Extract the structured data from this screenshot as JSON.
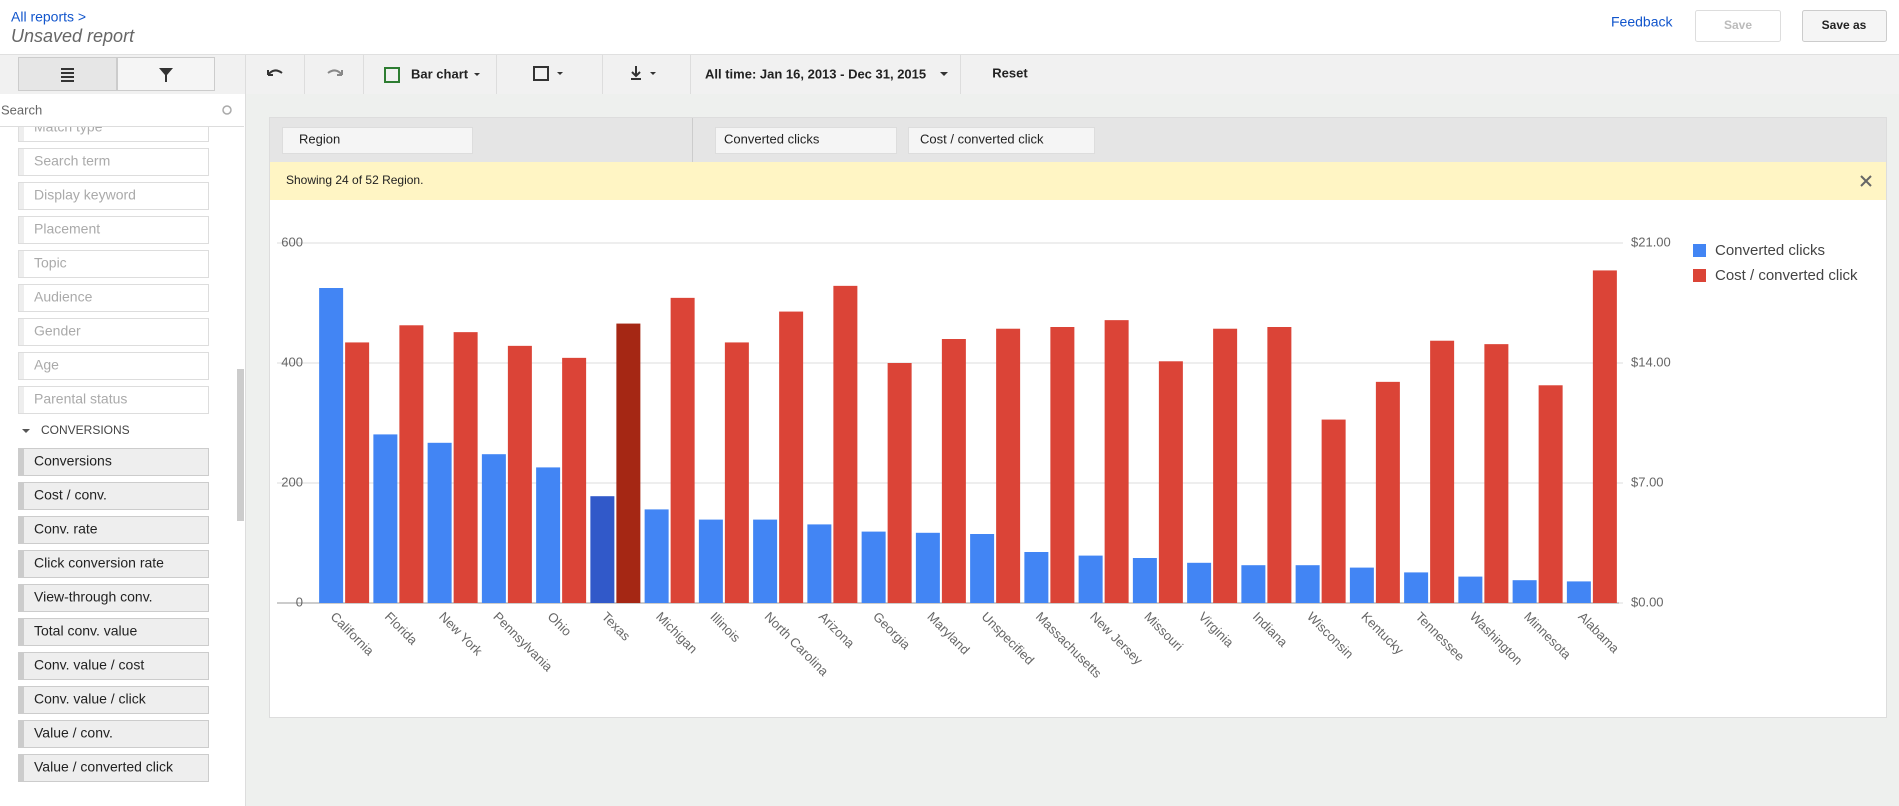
{
  "header": {
    "breadcrumb": "All reports >",
    "title": "Unsaved report",
    "feedback": "Feedback",
    "save": "Save",
    "save_as": "Save as"
  },
  "toolbar": {
    "chart_type": "Bar chart",
    "date_range": "All time: Jan 16, 2013 - Dec 31, 2015",
    "reset": "Reset"
  },
  "sidebar": {
    "search": "Search",
    "items": [
      "Match type",
      "Search term",
      "Display keyword",
      "Placement",
      "Topic",
      "Audience",
      "Gender",
      "Age",
      "Parental status"
    ],
    "section": "CONVERSIONS",
    "conversion_items": [
      "Conversions",
      "Cost / conv.",
      "Conv. rate",
      "Click conversion rate",
      "View-through conv.",
      "Total conv. value",
      "Conv. value / cost",
      "Conv. value / click",
      "Value / conv.",
      "Value / converted click"
    ]
  },
  "columns": {
    "rows": "Region",
    "values": [
      "Converted clicks",
      "Cost / converted click"
    ]
  },
  "notice": "Showing 24 of 52 Region.",
  "chart_data": {
    "type": "bar",
    "categories": [
      "California",
      "Florida",
      "New York",
      "Pennsylvania",
      "Ohio",
      "Texas",
      "Michigan",
      "Illinois",
      "North Carolina",
      "Arizona",
      "Georgia",
      "Maryland",
      "Unspecified",
      "Massachusetts",
      "New Jersey",
      "Missouri",
      "Virginia",
      "Indiana",
      "Wisconsin",
      "Kentucky",
      "Tennessee",
      "Washington",
      "Minnesota",
      "Alabama"
    ],
    "series": [
      {
        "name": "Converted clicks",
        "color": "#4285f4",
        "colors": [
          "#4285f4",
          "#4285f4",
          "#4285f4",
          "#4285f4",
          "#4285f4",
          "#3159c9",
          "#4285f4",
          "#4285f4",
          "#4285f4",
          "#4285f4",
          "#4285f4",
          "#4285f4",
          "#4285f4",
          "#4285f4",
          "#4285f4",
          "#4285f4",
          "#4285f4",
          "#4285f4",
          "#4285f4",
          "#4285f4",
          "#4285f4",
          "#4285f4",
          "#4285f4",
          "#4285f4"
        ],
        "values": [
          525,
          281,
          267,
          248,
          226,
          178,
          156,
          139,
          139,
          131,
          119,
          117,
          115,
          85,
          79,
          75,
          67,
          63,
          63,
          59,
          51,
          44,
          38,
          36
        ]
      },
      {
        "name": "Cost / converted click",
        "color": "#db4437",
        "axis": "y2",
        "colors": [
          "#db4437",
          "#db4437",
          "#db4437",
          "#db4437",
          "#db4437",
          "#a52714",
          "#db4437",
          "#db4437",
          "#db4437",
          "#db4437",
          "#db4437",
          "#db4437",
          "#db4437",
          "#db4437",
          "#db4437",
          "#db4437",
          "#db4437",
          "#db4437",
          "#db4437",
          "#db4437",
          "#db4437",
          "#db4437",
          "#db4437",
          "#db4437"
        ],
        "values": [
          15.2,
          16.2,
          15.8,
          15.0,
          14.3,
          16.3,
          17.8,
          15.2,
          17.0,
          18.5,
          14.0,
          15.4,
          16.0,
          16.1,
          16.5,
          14.1,
          16.0,
          16.1,
          10.7,
          12.9,
          15.3,
          15.1,
          12.7,
          19.4
        ]
      }
    ],
    "ylim": [
      0,
      600
    ],
    "yticks": [
      0,
      200,
      400,
      600
    ],
    "y2lim": [
      0,
      21
    ],
    "y2ticks": [
      {
        "value": 0,
        "label": "$0.00"
      },
      {
        "value": 7,
        "label": "$7.00"
      },
      {
        "value": 14,
        "label": "$14.00"
      },
      {
        "value": 21,
        "label": "$21.00"
      }
    ],
    "grid": true,
    "legend": "right"
  }
}
